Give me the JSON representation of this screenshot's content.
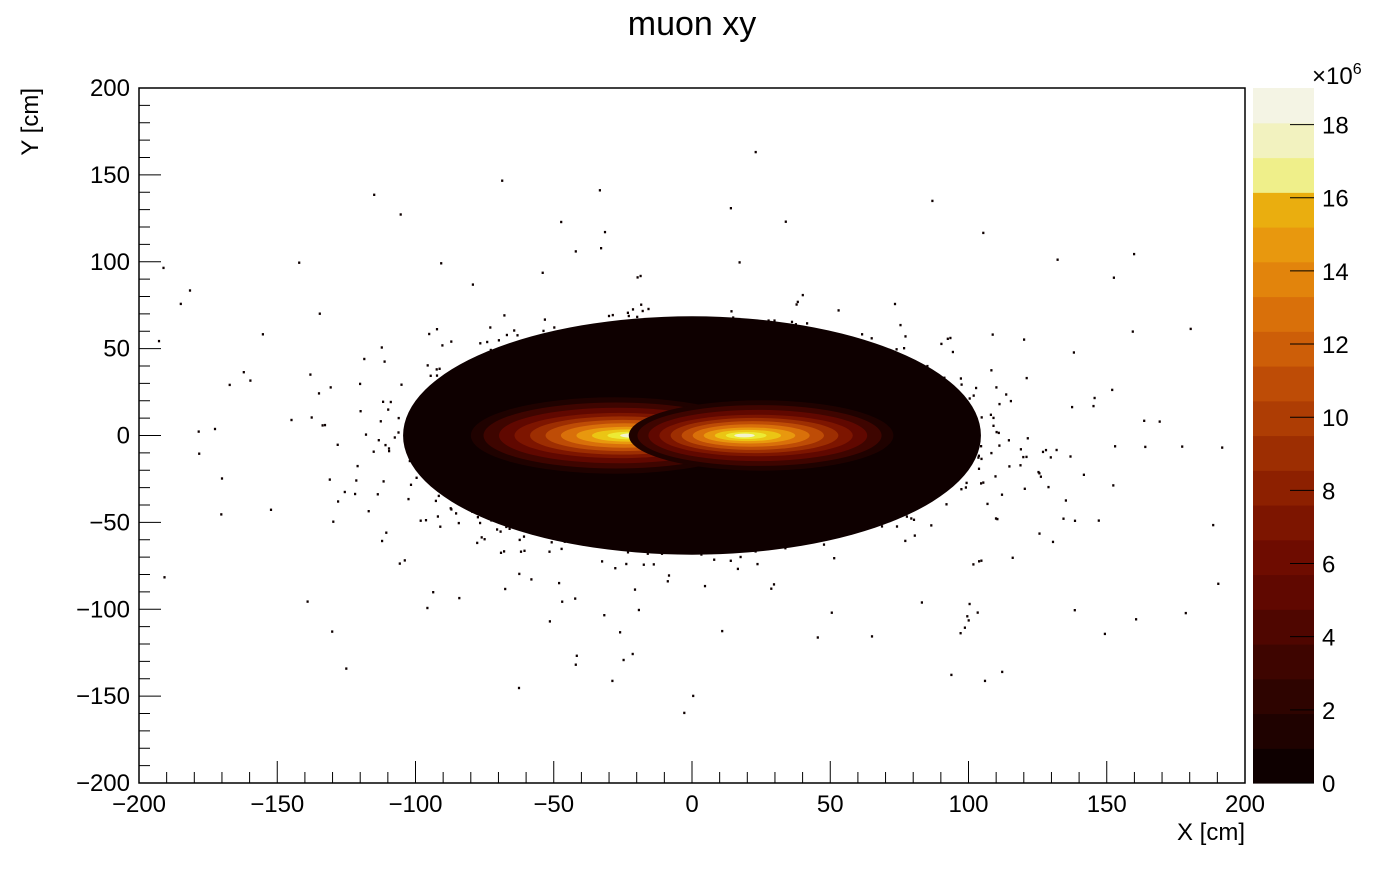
{
  "chart_data": {
    "type": "heatmap",
    "title": "muon xy",
    "xlabel": "X [cm]",
    "ylabel": "Y [cm]",
    "xlim": [
      -200,
      200
    ],
    "ylim": [
      -200,
      200
    ],
    "x_ticks": [
      "−200",
      "−150",
      "−100",
      "−50",
      "0",
      "50",
      "100",
      "150",
      "200"
    ],
    "x_tick_values": [
      -200,
      -150,
      -100,
      -50,
      0,
      50,
      100,
      150,
      200
    ],
    "y_ticks": [
      "−200",
      "−150",
      "−100",
      "−50",
      "0",
      "50",
      "100",
      "150",
      "200"
    ],
    "y_tick_values": [
      -200,
      -150,
      -100,
      -50,
      0,
      50,
      100,
      150,
      200
    ],
    "colorbar": {
      "min": 0,
      "max": 19,
      "multiplier_base": "×10",
      "multiplier_exp": "6",
      "ticks": [
        "0",
        "2",
        "4",
        "6",
        "8",
        "10",
        "12",
        "14",
        "16",
        "18"
      ],
      "tick_values": [
        0,
        2,
        4,
        6,
        8,
        10,
        12,
        14,
        16,
        18
      ],
      "levels": 20,
      "palette": [
        "#0e0000",
        "#1f0200",
        "#2e0400",
        "#3e0500",
        "#4f0600",
        "#600800",
        "#6e0c00",
        "#7d1500",
        "#8d2000",
        "#9d2e02",
        "#ae3d04",
        "#be4c06",
        "#cd5e08",
        "#d9700a",
        "#e2840c",
        "#e8980e",
        "#eaae0f",
        "#ebc514",
        "#ebdb1e",
        "#ecea34",
        "#eeee8c",
        "#f3f3cc",
        "#f5f5e8"
      ]
    },
    "distribution": {
      "core_region_x": [
        -110,
        110
      ],
      "core_region_y": [
        -70,
        70
      ],
      "peak_lobes_x": [
        -25,
        20
      ],
      "peak_lobe_y": 0,
      "peak_value": 18.9
    },
    "grid": false,
    "legend": "colorbar-right"
  }
}
